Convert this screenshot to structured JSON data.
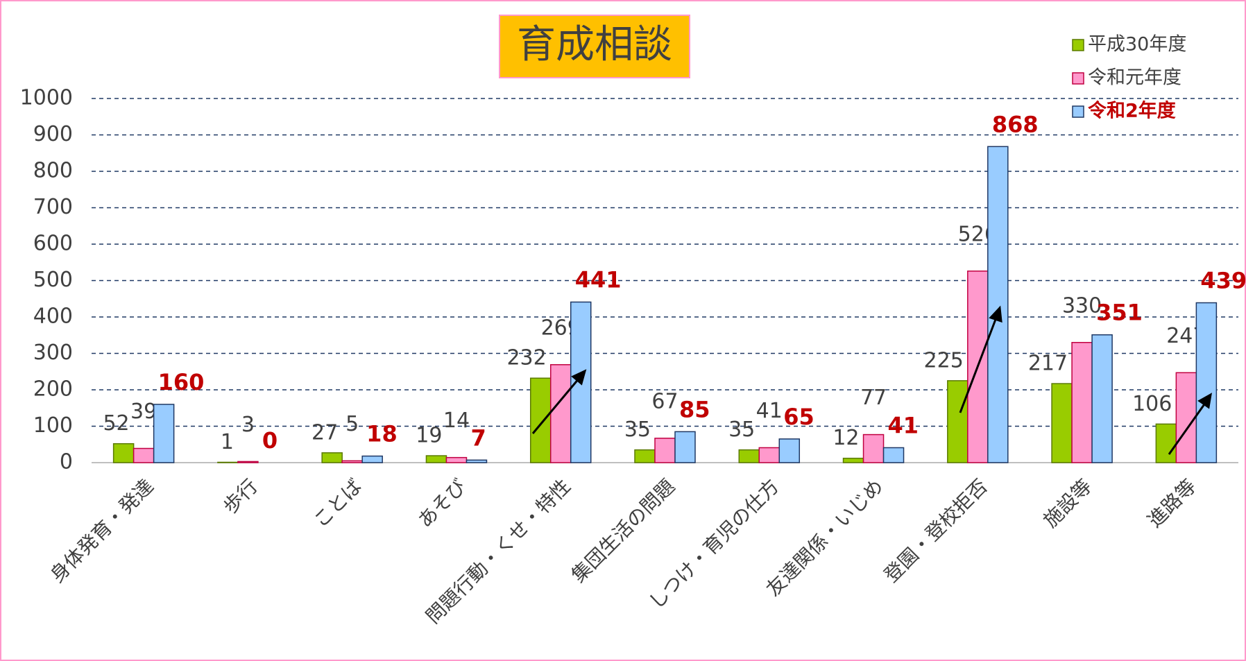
{
  "chart_data": {
    "type": "bar",
    "title": "育成相談",
    "categories": [
      "身体発育・発達",
      "歩行",
      "ことば",
      "あそび",
      "問題行動・くせ・特性",
      "集団生活の問題",
      "しつけ・育児の仕方",
      "友達関係・いじめ",
      "登園・登校拒否",
      "施設等",
      "進路等"
    ],
    "series": [
      {
        "name": "平成30年度",
        "color": "#99cc00",
        "values": [
          52,
          1,
          27,
          19,
          232,
          35,
          35,
          12,
          225,
          217,
          106
        ]
      },
      {
        "name": "令和元年度",
        "color": "#ff99cc",
        "values": [
          39,
          3,
          5,
          14,
          269,
          67,
          41,
          77,
          526,
          330,
          247
        ]
      },
      {
        "name": "令和2年度",
        "color": "#99ccff",
        "values": [
          160,
          0,
          18,
          7,
          441,
          85,
          65,
          41,
          868,
          351,
          439
        ]
      }
    ],
    "ylim": [
      0,
      1000
    ],
    "yticks": [
      0,
      100,
      200,
      300,
      400,
      500,
      600,
      700,
      800,
      900,
      1000
    ],
    "grid": true,
    "legend": "top-right"
  }
}
